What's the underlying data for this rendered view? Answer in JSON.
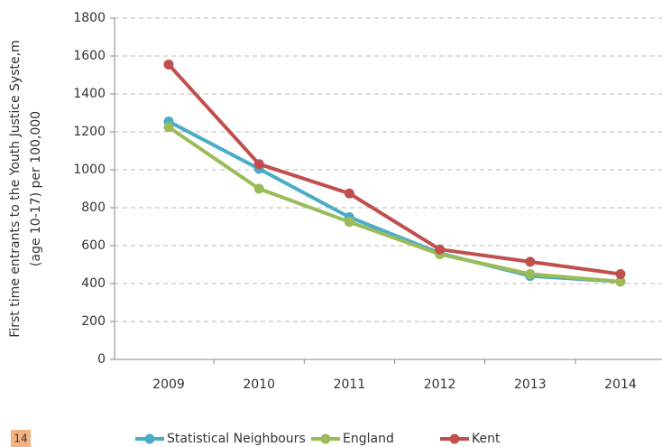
{
  "chart_data": {
    "type": "line",
    "ylabel": [
      "First time entrants to the Youth Justice Syste,m",
      "(age 10-17) per 100,000"
    ],
    "categories": [
      "2009",
      "2010",
      "2011",
      "2012",
      "2013",
      "2014"
    ],
    "series": [
      {
        "name": "Statistical Neighbours",
        "color": "#4bacc6",
        "values": [
          1255,
          1005,
          750,
          560,
          440,
          410
        ]
      },
      {
        "name": "England",
        "color": "#9bbb59",
        "values": [
          1225,
          900,
          725,
          555,
          450,
          410
        ]
      },
      {
        "name": "Kent",
        "color": "#c0504d",
        "values": [
          1555,
          1030,
          875,
          580,
          515,
          450
        ]
      }
    ],
    "ylim": [
      0,
      1800
    ],
    "yticks": [
      0,
      200,
      400,
      600,
      800,
      1000,
      1200,
      1400,
      1600,
      1800
    ],
    "grid": true,
    "legend": "bottom",
    "annotation": "14"
  }
}
